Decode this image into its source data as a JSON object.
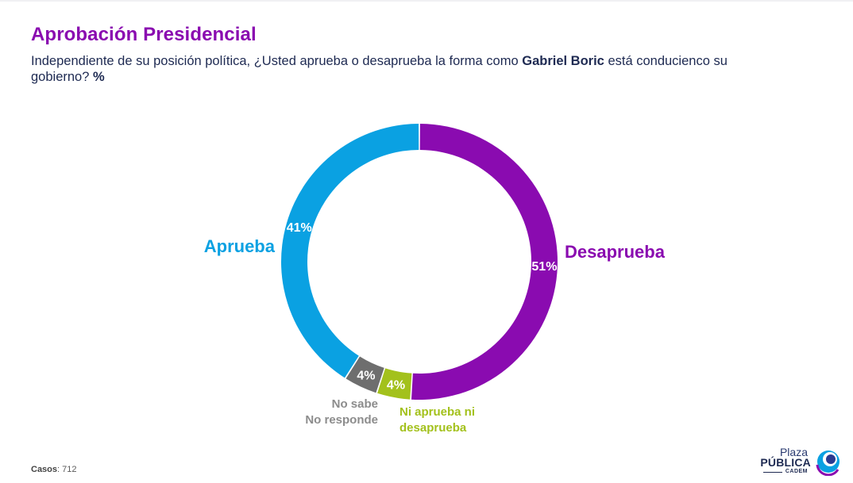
{
  "header": {
    "title": "Aprobación Presidencial",
    "subtitle_part1": "Independiente de su posición política, ¿Usted aprueba o desaprueba la forma como ",
    "subtitle_name": "Gabriel Boric",
    "subtitle_part2": " está conducienco su gobierno? ",
    "subtitle_unit": "%"
  },
  "chart_data": {
    "type": "pie",
    "title": "",
    "donut": true,
    "series": [
      {
        "name": "Desaprueba",
        "value": 51,
        "label": "51%",
        "color": "#8a0bb0"
      },
      {
        "name": "Ni aprueba ni desaprueba",
        "value": 4,
        "label": "4%",
        "color": "#a3c11c"
      },
      {
        "name": "No sabe No responde",
        "value": 4,
        "label": "4%",
        "color": "#6e6e6e"
      },
      {
        "name": "Aprueba",
        "value": 41,
        "label": "41%",
        "color": "#0aa1e2"
      }
    ]
  },
  "labels": {
    "aprueba": "Aprueba",
    "desaprueba": "Desaprueba",
    "ni_line1": "Ni aprueba ni",
    "ni_line2": "desaprueba",
    "ns_line1": "No sabe",
    "ns_line2": "No responde"
  },
  "footer": {
    "casos_label": "Casos",
    "casos_value": ": 712"
  },
  "logo": {
    "line1": "Plaza",
    "line2": "PÚBLICA",
    "line3": "CADEM"
  }
}
